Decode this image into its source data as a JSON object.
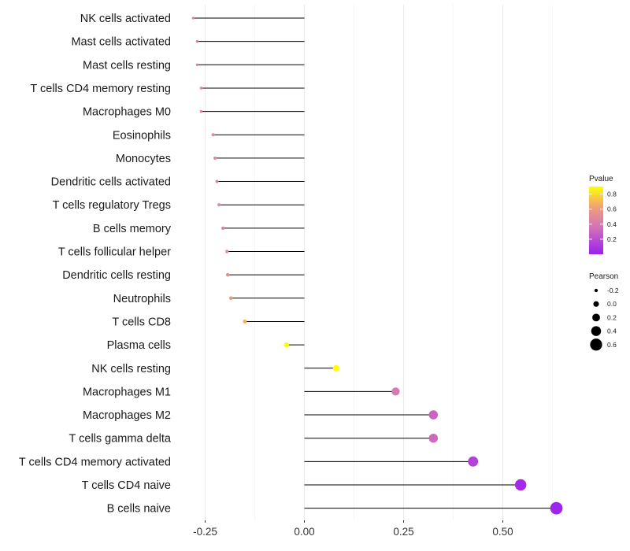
{
  "chart_data": {
    "type": "lollipop",
    "title": "",
    "xlabel": "",
    "ylabel": "",
    "xlim": [
      -0.3,
      0.65
    ],
    "x_ticks": [
      -0.25,
      0.0,
      0.25,
      0.5
    ],
    "x_tick_labels": [
      "-0.25",
      "0.00",
      "0.25",
      "0.50"
    ],
    "grid": true,
    "categories": [
      "NK cells activated",
      "Mast cells activated",
      "Mast cells resting",
      "T cells CD4 memory resting",
      "Macrophages M0",
      "Eosinophils",
      "Monocytes",
      "Dendritic cells activated",
      "T cells regulatory  Tregs ",
      "B cells memory",
      "T cells follicular helper",
      "Dendritic cells resting",
      "Neutrophils",
      "T cells CD8",
      "Plasma cells",
      "NK cells resting",
      "Macrophages M1",
      "Macrophages M2",
      "T cells gamma delta",
      "T cells CD4 memory activated",
      "T cells CD4 naive",
      "B cells naive"
    ],
    "pearson": [
      -0.28,
      -0.27,
      -0.27,
      -0.26,
      -0.26,
      -0.23,
      -0.225,
      -0.22,
      -0.215,
      -0.205,
      -0.195,
      -0.193,
      -0.185,
      -0.15,
      -0.045,
      0.08,
      0.23,
      0.325,
      0.325,
      0.425,
      0.545,
      0.635
    ],
    "pvalue": [
      0.45,
      0.42,
      0.45,
      0.48,
      0.45,
      0.5,
      0.48,
      0.47,
      0.5,
      0.45,
      0.55,
      0.52,
      0.58,
      0.68,
      0.92,
      0.9,
      0.4,
      0.3,
      0.32,
      0.15,
      0.05,
      0.02
    ],
    "legend": {
      "color_title": "Pvalue",
      "color_ticks": [
        0.2,
        0.4,
        0.6,
        0.8
      ],
      "color_tick_labels": [
        "0.2",
        "0.4",
        "0.6",
        "0.8"
      ],
      "color_range": [
        0.0,
        0.9
      ],
      "size_title": "Pearson",
      "size_values": [
        -0.2,
        0.0,
        0.2,
        0.4,
        0.6
      ],
      "size_labels": [
        "-0.2",
        "0.0",
        "0.2",
        "0.4",
        "0.6"
      ],
      "placement": "right"
    },
    "colors": {
      "low": "#9b20f0",
      "mid": "#d472b8",
      "mid2": "#f0a078",
      "high": "#ffff00",
      "stem": "#000000",
      "grid": "#ebebeb"
    }
  }
}
